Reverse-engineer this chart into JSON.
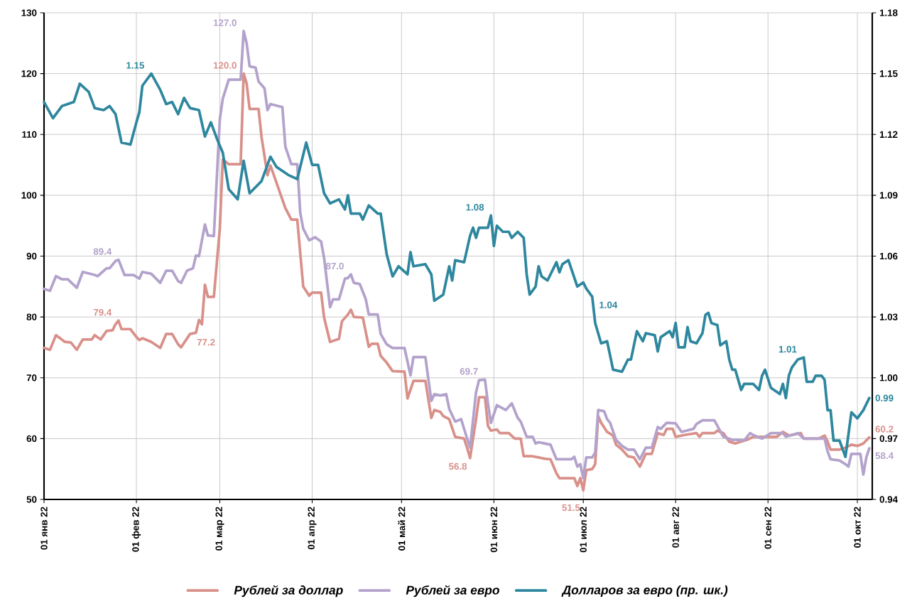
{
  "chart_data": {
    "type": "line",
    "xlim": [
      "2022-01-01",
      "2022-10-06"
    ],
    "xticks": [
      {
        "value": "2022-01-01",
        "label": "01 янв 22"
      },
      {
        "value": "2022-02-01",
        "label": "01 фев 22"
      },
      {
        "value": "2022-03-01",
        "label": "01 мар 22"
      },
      {
        "value": "2022-04-01",
        "label": "01 апр 22"
      },
      {
        "value": "2022-05-01",
        "label": "01 май 22"
      },
      {
        "value": "2022-06-01",
        "label": "01 июн 22"
      },
      {
        "value": "2022-07-01",
        "label": "01 июл 22"
      },
      {
        "value": "2022-08-01",
        "label": "01 авг 22"
      },
      {
        "value": "2022-09-01",
        "label": "01 сен 22"
      },
      {
        "value": "2022-10-01",
        "label": "01 окт 22"
      }
    ],
    "ylim": [
      50,
      130
    ],
    "yticks": [
      50,
      60,
      70,
      80,
      90,
      100,
      110,
      120,
      130
    ],
    "y2lim": [
      0.94,
      1.18
    ],
    "y2ticks": [
      0.94,
      0.97,
      {
        "value": 1.0,
        "label": "1.00"
      },
      1.03,
      1.06,
      1.09,
      1.12,
      1.15,
      1.18
    ],
    "grid": true,
    "legend": "bottom",
    "series": [
      {
        "name": "Рублей за доллар",
        "color": "#d9908a",
        "x": [
          "2022-01-01",
          "2022-01-03",
          "2022-01-05",
          "2022-01-08",
          "2022-01-10",
          "2022-01-12",
          "2022-01-14",
          "2022-01-17",
          "2022-01-18",
          "2022-01-20",
          "2022-01-22",
          "2022-01-24",
          "2022-01-25",
          "2022-01-26",
          "2022-01-27",
          "2022-01-30",
          "2022-02-01",
          "2022-02-02",
          "2022-02-03",
          "2022-02-06",
          "2022-02-09",
          "2022-02-11",
          "2022-02-13",
          "2022-02-15",
          "2022-02-16",
          "2022-02-19",
          "2022-02-21",
          "2022-02-22",
          "2022-02-23",
          "2022-02-24",
          "2022-02-25",
          "2022-02-27",
          "2022-03-01",
          "2022-03-02",
          "2022-03-04",
          "2022-03-08",
          "2022-03-09",
          "2022-03-10",
          "2022-03-11",
          "2022-03-14",
          "2022-03-15",
          "2022-03-17",
          "2022-03-18",
          "2022-03-23",
          "2022-03-25",
          "2022-03-27",
          "2022-03-29",
          "2022-03-31",
          "2022-04-01",
          "2022-04-04",
          "2022-04-05",
          "2022-04-07",
          "2022-04-10",
          "2022-04-11",
          "2022-04-13",
          "2022-04-14",
          "2022-04-15",
          "2022-04-18",
          "2022-04-20",
          "2022-04-21",
          "2022-04-23",
          "2022-04-24",
          "2022-04-26",
          "2022-04-28",
          "2022-05-02",
          "2022-05-03",
          "2022-05-05",
          "2022-05-09",
          "2022-05-11",
          "2022-05-12",
          "2022-05-14",
          "2022-05-15",
          "2022-05-17",
          "2022-05-19",
          "2022-05-22",
          "2022-05-23",
          "2022-05-24",
          "2022-05-26",
          "2022-05-27",
          "2022-05-29",
          "2022-05-30",
          "2022-05-31",
          "2022-06-02",
          "2022-06-03",
          "2022-06-06",
          "2022-06-08",
          "2022-06-10",
          "2022-06-11",
          "2022-06-14",
          "2022-06-16",
          "2022-06-18",
          "2022-06-20",
          "2022-06-22",
          "2022-06-23",
          "2022-06-28",
          "2022-06-29",
          "2022-06-30",
          "2022-07-01",
          "2022-07-02",
          "2022-07-04",
          "2022-07-05",
          "2022-07-06",
          "2022-07-07",
          "2022-07-09",
          "2022-07-11",
          "2022-07-12",
          "2022-07-14",
          "2022-07-16",
          "2022-07-18",
          "2022-07-20",
          "2022-07-22",
          "2022-07-24",
          "2022-07-26",
          "2022-07-28",
          "2022-07-29",
          "2022-07-31",
          "2022-08-01",
          "2022-08-04",
          "2022-08-08",
          "2022-08-09",
          "2022-08-10",
          "2022-08-14",
          "2022-08-15",
          "2022-08-17",
          "2022-08-19",
          "2022-08-21",
          "2022-08-25",
          "2022-08-27",
          "2022-08-30",
          "2022-09-04",
          "2022-09-06",
          "2022-09-08",
          "2022-09-12",
          "2022-09-13",
          "2022-09-18",
          "2022-09-20",
          "2022-09-21",
          "2022-09-22",
          "2022-09-25",
          "2022-09-27",
          "2022-09-29",
          "2022-10-01",
          "2022-10-03",
          "2022-10-05"
        ],
        "values": [
          74.9,
          74.6,
          77.0,
          75.9,
          75.8,
          74.6,
          76.3,
          76.3,
          77.0,
          76.3,
          77.7,
          77.8,
          78.8,
          79.4,
          78.0,
          78.0,
          76.7,
          76.2,
          76.5,
          75.9,
          74.9,
          77.2,
          77.2,
          75.5,
          75.0,
          77.2,
          77.4,
          79.5,
          78.8,
          85.3,
          83.3,
          83.3,
          94.5,
          105.9,
          105.1,
          105.1,
          120.0,
          118.4,
          114.2,
          114.2,
          109.6,
          103.3,
          104.9,
          97.9,
          96.0,
          96.0,
          85.0,
          83.5,
          84.0,
          84.0,
          79.9,
          75.9,
          76.4,
          79.3,
          80.4,
          81.2,
          80.0,
          79.9,
          75.1,
          75.6,
          75.6,
          73.6,
          72.5,
          71.1,
          71.0,
          66.6,
          69.5,
          69.5,
          63.4,
          64.7,
          64.4,
          63.7,
          63.2,
          60.3,
          60.0,
          58.5,
          56.8,
          63.2,
          66.8,
          66.8,
          62.1,
          61.3,
          61.5,
          60.9,
          60.9,
          60.0,
          60.0,
          57.1,
          57.1,
          56.9,
          56.7,
          56.6,
          54.3,
          53.5,
          53.5,
          52.2,
          53.5,
          51.5,
          54.8,
          55.0,
          55.8,
          63.7,
          62.6,
          61.1,
          60.5,
          59.0,
          58.2,
          57.1,
          56.9,
          55.4,
          57.5,
          57.5,
          60.9,
          60.6,
          61.6,
          61.6,
          60.3,
          60.6,
          60.9,
          60.3,
          60.9,
          60.9,
          61.3,
          60.9,
          59.5,
          59.2,
          59.8,
          60.3,
          60.3,
          60.3,
          61.1,
          60.5,
          60.9,
          60.0,
          60.0,
          60.5,
          59.5,
          58.2,
          58.2,
          58.5,
          59.0,
          58.8,
          59.2,
          60.2
        ],
        "value_labels": [
          null,
          null,
          null,
          null,
          null,
          null,
          null,
          null,
          null,
          null,
          null,
          null,
          null,
          "79.4",
          null,
          null,
          null,
          null,
          null,
          null,
          null,
          null,
          null,
          null,
          null,
          "77.2",
          null,
          null,
          null,
          null,
          null,
          null,
          null,
          null,
          null,
          null,
          "120.0",
          null,
          null,
          null,
          null,
          null,
          null,
          null,
          null,
          null,
          null,
          null,
          null,
          null,
          null,
          null,
          null,
          null,
          null,
          null,
          null,
          null,
          null,
          null,
          null,
          null,
          null,
          null,
          null,
          null,
          null,
          null,
          null,
          null,
          null,
          null,
          null,
          null,
          null,
          null,
          "56.8",
          null,
          null,
          null,
          null,
          null,
          null,
          null,
          null,
          null,
          null,
          null,
          null,
          null,
          null,
          null,
          null,
          null,
          null,
          null,
          null,
          "51.5",
          null,
          null,
          null,
          null,
          null,
          null,
          null,
          null,
          null,
          null,
          null,
          null,
          null,
          null,
          null,
          null,
          null,
          null,
          null,
          null,
          null,
          null,
          null,
          null,
          null,
          null,
          null,
          null,
          null,
          null,
          null,
          null,
          null,
          null,
          null,
          null,
          null,
          null,
          null,
          null,
          null,
          null,
          null,
          null,
          null,
          "60.2"
        ]
      },
      {
        "name": "Рублей за евро",
        "color": "#b3a2cb",
        "x": [
          "2022-01-01",
          "2022-01-03",
          "2022-01-05",
          "2022-01-07",
          "2022-01-09",
          "2022-01-12",
          "2022-01-14",
          "2022-01-18",
          "2022-01-19",
          "2022-01-22",
          "2022-01-23",
          "2022-01-25",
          "2022-01-26",
          "2022-01-28",
          "2022-01-31",
          "2022-02-02",
          "2022-02-03",
          "2022-02-06",
          "2022-02-09",
          "2022-02-11",
          "2022-02-13",
          "2022-02-15",
          "2022-02-16",
          "2022-02-18",
          "2022-02-20",
          "2022-02-21",
          "2022-02-22",
          "2022-02-24",
          "2022-02-25",
          "2022-02-27",
          "2022-03-01",
          "2022-03-02",
          "2022-03-04",
          "2022-03-08",
          "2022-03-09",
          "2022-03-10",
          "2022-03-11",
          "2022-03-13",
          "2022-03-14",
          "2022-03-16",
          "2022-03-17",
          "2022-03-18",
          "2022-03-22",
          "2022-03-23",
          "2022-03-25",
          "2022-03-27",
          "2022-03-28",
          "2022-03-29",
          "2022-03-31",
          "2022-04-02",
          "2022-04-04",
          "2022-04-05",
          "2022-04-07",
          "2022-04-08",
          "2022-04-10",
          "2022-04-12",
          "2022-04-13",
          "2022-04-14",
          "2022-04-15",
          "2022-04-17",
          "2022-04-19",
          "2022-04-20",
          "2022-04-23",
          "2022-04-24",
          "2022-04-26",
          "2022-04-28",
          "2022-05-02",
          "2022-05-04",
          "2022-05-05",
          "2022-05-09",
          "2022-05-11",
          "2022-05-12",
          "2022-05-14",
          "2022-05-16",
          "2022-05-17",
          "2022-05-19",
          "2022-05-21",
          "2022-05-22",
          "2022-05-24",
          "2022-05-26",
          "2022-05-27",
          "2022-05-29",
          "2022-05-30",
          "2022-05-31",
          "2022-06-02",
          "2022-06-05",
          "2022-06-07",
          "2022-06-09",
          "2022-06-10",
          "2022-06-12",
          "2022-06-14",
          "2022-06-15",
          "2022-06-16",
          "2022-06-20",
          "2022-06-22",
          "2022-06-27",
          "2022-06-28",
          "2022-06-29",
          "2022-06-30",
          "2022-07-01",
          "2022-07-02",
          "2022-07-04",
          "2022-07-05",
          "2022-07-06",
          "2022-07-08",
          "2022-07-09",
          "2022-07-10",
          "2022-07-12",
          "2022-07-14",
          "2022-07-16",
          "2022-07-18",
          "2022-07-20",
          "2022-07-22",
          "2022-07-24",
          "2022-07-26",
          "2022-07-27",
          "2022-07-29",
          "2022-08-01",
          "2022-08-03",
          "2022-08-07",
          "2022-08-08",
          "2022-08-10",
          "2022-08-14",
          "2022-08-15",
          "2022-08-17",
          "2022-08-20",
          "2022-08-22",
          "2022-08-24",
          "2022-08-26",
          "2022-08-27",
          "2022-08-30",
          "2022-09-02",
          "2022-09-06",
          "2022-09-07",
          "2022-09-11",
          "2022-09-13",
          "2022-09-20",
          "2022-09-21",
          "2022-09-22",
          "2022-09-25",
          "2022-09-27",
          "2022-09-28",
          "2022-09-29",
          "2022-10-02",
          "2022-10-03",
          "2022-10-04",
          "2022-10-05"
        ],
        "values": [
          84.6,
          84.3,
          86.7,
          86.2,
          86.2,
          84.8,
          87.4,
          86.9,
          86.7,
          88.0,
          88.0,
          89.2,
          89.4,
          86.9,
          86.9,
          86.3,
          87.4,
          87.1,
          85.6,
          87.6,
          87.6,
          85.9,
          85.6,
          87.6,
          88.0,
          90.1,
          90.0,
          95.2,
          93.4,
          93.3,
          112.5,
          115.9,
          119.0,
          119.0,
          127.0,
          125.0,
          121.2,
          121.0,
          118.7,
          117.6,
          114.0,
          115.0,
          114.5,
          108.0,
          105.1,
          105.1,
          97.1,
          94.5,
          92.6,
          93.1,
          92.4,
          89.7,
          81.6,
          82.9,
          82.9,
          86.3,
          86.4,
          87.0,
          85.6,
          85.4,
          82.9,
          80.4,
          80.4,
          77.2,
          75.5,
          74.9,
          74.9,
          70.4,
          73.4,
          73.4,
          66.2,
          67.3,
          67.1,
          67.3,
          64.9,
          62.8,
          63.2,
          61.6,
          58.5,
          67.6,
          69.6,
          69.7,
          65.8,
          62.6,
          65.5,
          64.7,
          65.8,
          63.4,
          62.8,
          60.3,
          60.3,
          59.2,
          59.4,
          59.0,
          56.6,
          56.6,
          57.0,
          55.4,
          55.8,
          53.5,
          56.9,
          56.9,
          57.7,
          64.7,
          64.5,
          63.2,
          62.6,
          59.8,
          58.8,
          58.2,
          58.2,
          56.6,
          58.5,
          58.5,
          61.9,
          61.6,
          62.6,
          62.5,
          61.1,
          61.6,
          62.4,
          63.0,
          63.0,
          62.1,
          60.3,
          59.8,
          59.8,
          59.7,
          60.9,
          60.6,
          60.0,
          60.9,
          60.9,
          60.3,
          60.9,
          60.0,
          60.0,
          57.9,
          56.6,
          56.4,
          55.8,
          55.4,
          57.5,
          57.5,
          54.1,
          56.9,
          58.4
        ],
        "value_labels": [
          null,
          null,
          null,
          null,
          null,
          null,
          null,
          null,
          null,
          null,
          null,
          null,
          "89.4",
          null,
          null,
          null,
          null,
          null,
          null,
          null,
          null,
          null,
          null,
          null,
          null,
          null,
          null,
          null,
          null,
          null,
          null,
          null,
          null,
          null,
          "127.0",
          null,
          null,
          null,
          null,
          null,
          null,
          null,
          null,
          null,
          null,
          null,
          null,
          null,
          null,
          null,
          null,
          null,
          null,
          null,
          null,
          null,
          null,
          "87.0",
          null,
          null,
          null,
          null,
          null,
          null,
          null,
          null,
          null,
          null,
          null,
          null,
          null,
          null,
          null,
          null,
          null,
          null,
          null,
          null,
          null,
          null,
          null,
          "69.7",
          null,
          null,
          null,
          null,
          null,
          null,
          null,
          null,
          null,
          null,
          null,
          null,
          null,
          null,
          null,
          null,
          null,
          null,
          null,
          null,
          null,
          null,
          null,
          null,
          null,
          null,
          null,
          null,
          null,
          null,
          null,
          null,
          null,
          null,
          null,
          null,
          null,
          null,
          null,
          null,
          null,
          null,
          null,
          null,
          null,
          null,
          null,
          null,
          null,
          null,
          null,
          null,
          null,
          null,
          null,
          null,
          null,
          null,
          null,
          null,
          null,
          null,
          null,
          null,
          "58.4"
        ]
      },
      {
        "name": "Долларов за евро (пр. шк.)",
        "color": "#2e879e",
        "axis": "y2",
        "x": [
          "2022-01-01",
          "2022-01-04",
          "2022-01-07",
          "2022-01-11",
          "2022-01-13",
          "2022-01-16",
          "2022-01-18",
          "2022-01-21",
          "2022-01-23",
          "2022-01-25",
          "2022-01-27",
          "2022-01-30",
          "2022-02-01",
          "2022-02-02",
          "2022-02-03",
          "2022-02-06",
          "2022-02-09",
          "2022-02-11",
          "2022-02-13",
          "2022-02-15",
          "2022-02-17",
          "2022-02-19",
          "2022-02-22",
          "2022-02-24",
          "2022-02-26",
          "2022-02-28",
          "2022-03-02",
          "2022-03-04",
          "2022-03-07",
          "2022-03-09",
          "2022-03-11",
          "2022-03-15",
          "2022-03-18",
          "2022-03-20",
          "2022-03-24",
          "2022-03-27",
          "2022-03-30",
          "2022-04-01",
          "2022-04-03",
          "2022-04-05",
          "2022-04-07",
          "2022-04-10",
          "2022-04-12",
          "2022-04-13",
          "2022-04-14",
          "2022-04-17",
          "2022-04-18",
          "2022-04-20",
          "2022-04-23",
          "2022-04-24",
          "2022-04-26",
          "2022-04-28",
          "2022-04-30",
          "2022-05-03",
          "2022-05-04",
          "2022-05-05",
          "2022-05-09",
          "2022-05-11",
          "2022-05-12",
          "2022-05-15",
          "2022-05-17",
          "2022-05-18",
          "2022-05-19",
          "2022-05-22",
          "2022-05-24",
          "2022-05-25",
          "2022-05-26",
          "2022-05-27",
          "2022-05-30",
          "2022-05-31",
          "2022-06-01",
          "2022-06-02",
          "2022-06-04",
          "2022-06-06",
          "2022-06-07",
          "2022-06-09",
          "2022-06-11",
          "2022-06-12",
          "2022-06-13",
          "2022-06-15",
          "2022-06-16",
          "2022-06-17",
          "2022-06-19",
          "2022-06-22",
          "2022-06-23",
          "2022-06-24",
          "2022-06-26",
          "2022-06-29",
          "2022-07-01",
          "2022-07-02",
          "2022-07-04",
          "2022-07-05",
          "2022-07-07",
          "2022-07-09",
          "2022-07-11",
          "2022-07-14",
          "2022-07-16",
          "2022-07-17",
          "2022-07-19",
          "2022-07-21",
          "2022-07-22",
          "2022-07-25",
          "2022-07-26",
          "2022-07-27",
          "2022-07-30",
          "2022-07-31",
          "2022-08-01",
          "2022-08-02",
          "2022-08-04",
          "2022-08-05",
          "2022-08-06",
          "2022-08-08",
          "2022-08-10",
          "2022-08-11",
          "2022-08-12",
          "2022-08-13",
          "2022-08-15",
          "2022-08-16",
          "2022-08-18",
          "2022-08-19",
          "2022-08-20",
          "2022-08-21",
          "2022-08-23",
          "2022-08-24",
          "2022-08-27",
          "2022-08-29",
          "2022-08-30",
          "2022-08-31",
          "2022-09-02",
          "2022-09-05",
          "2022-09-06",
          "2022-09-07",
          "2022-09-08",
          "2022-09-09",
          "2022-09-11",
          "2022-09-13",
          "2022-09-14",
          "2022-09-16",
          "2022-09-17",
          "2022-09-19",
          "2022-09-20",
          "2022-09-21",
          "2022-09-22",
          "2022-09-23",
          "2022-09-25",
          "2022-09-27",
          "2022-09-29",
          "2022-10-01",
          "2022-10-03",
          "2022-10-05"
        ],
        "values": [
          1.136,
          1.128,
          1.134,
          1.136,
          1.145,
          1.141,
          1.133,
          1.132,
          1.134,
          1.13,
          1.116,
          1.115,
          1.126,
          1.131,
          1.144,
          1.15,
          1.142,
          1.135,
          1.136,
          1.13,
          1.138,
          1.133,
          1.132,
          1.119,
          1.126,
          1.118,
          1.111,
          1.093,
          1.088,
          1.107,
          1.091,
          1.097,
          1.109,
          1.104,
          1.1,
          1.098,
          1.116,
          1.105,
          1.105,
          1.091,
          1.086,
          1.088,
          1.083,
          1.09,
          1.081,
          1.081,
          1.078,
          1.085,
          1.081,
          1.081,
          1.061,
          1.05,
          1.055,
          1.051,
          1.062,
          1.055,
          1.056,
          1.051,
          1.038,
          1.041,
          1.055,
          1.048,
          1.058,
          1.057,
          1.07,
          1.074,
          1.069,
          1.074,
          1.074,
          1.08,
          1.065,
          1.075,
          1.072,
          1.072,
          1.069,
          1.072,
          1.069,
          1.051,
          1.041,
          1.045,
          1.055,
          1.05,
          1.048,
          1.057,
          1.052,
          1.056,
          1.058,
          1.045,
          1.047,
          1.044,
          1.04,
          1.027,
          1.017,
          1.018,
          1.004,
          1.003,
          1.009,
          1.009,
          1.023,
          1.018,
          1.022,
          1.021,
          1.013,
          1.02,
          1.023,
          1.02,
          1.027,
          1.015,
          1.015,
          1.025,
          1.018,
          1.017,
          1.022,
          1.031,
          1.032,
          1.027,
          1.026,
          1.016,
          1.018,
          1.009,
          1.004,
          1.004,
          0.994,
          0.997,
          0.997,
          0.994,
          1.001,
          1.004,
          0.995,
          0.992,
          0.997,
          0.99,
          1.001,
          1.005,
          1.009,
          1.01,
          0.998,
          0.998,
          1.001,
          1.001,
          0.999,
          0.984,
          0.984,
          0.969,
          0.969,
          0.961,
          0.983,
          0.98,
          0.984,
          0.99
        ],
        "value_labels": [
          null,
          null,
          null,
          null,
          null,
          null,
          null,
          null,
          null,
          null,
          null,
          null,
          null,
          null,
          null,
          "1.15",
          null,
          null,
          null,
          null,
          null,
          null,
          null,
          null,
          null,
          null,
          null,
          null,
          null,
          null,
          null,
          null,
          null,
          null,
          null,
          null,
          null,
          null,
          null,
          null,
          null,
          null,
          null,
          null,
          null,
          null,
          null,
          null,
          null,
          null,
          null,
          null,
          null,
          null,
          null,
          null,
          null,
          null,
          null,
          null,
          null,
          null,
          null,
          null,
          null,
          null,
          null,
          null,
          null,
          "1.08",
          null,
          null,
          null,
          null,
          null,
          null,
          null,
          null,
          null,
          null,
          null,
          null,
          null,
          null,
          null,
          null,
          null,
          null,
          null,
          null,
          "1.04",
          null,
          null,
          null,
          null,
          null,
          null,
          null,
          null,
          null,
          null,
          null,
          null,
          null,
          null,
          null,
          null,
          null,
          null,
          null,
          null,
          null,
          null,
          null,
          null,
          null,
          null,
          null,
          null,
          null,
          null,
          null,
          null,
          null,
          null,
          null,
          null,
          null,
          null,
          null,
          null,
          null,
          null,
          null,
          null,
          "1.01",
          null,
          null,
          null,
          null,
          null,
          null,
          null,
          null,
          null,
          null,
          null,
          null,
          null,
          "0.99"
        ]
      }
    ]
  }
}
